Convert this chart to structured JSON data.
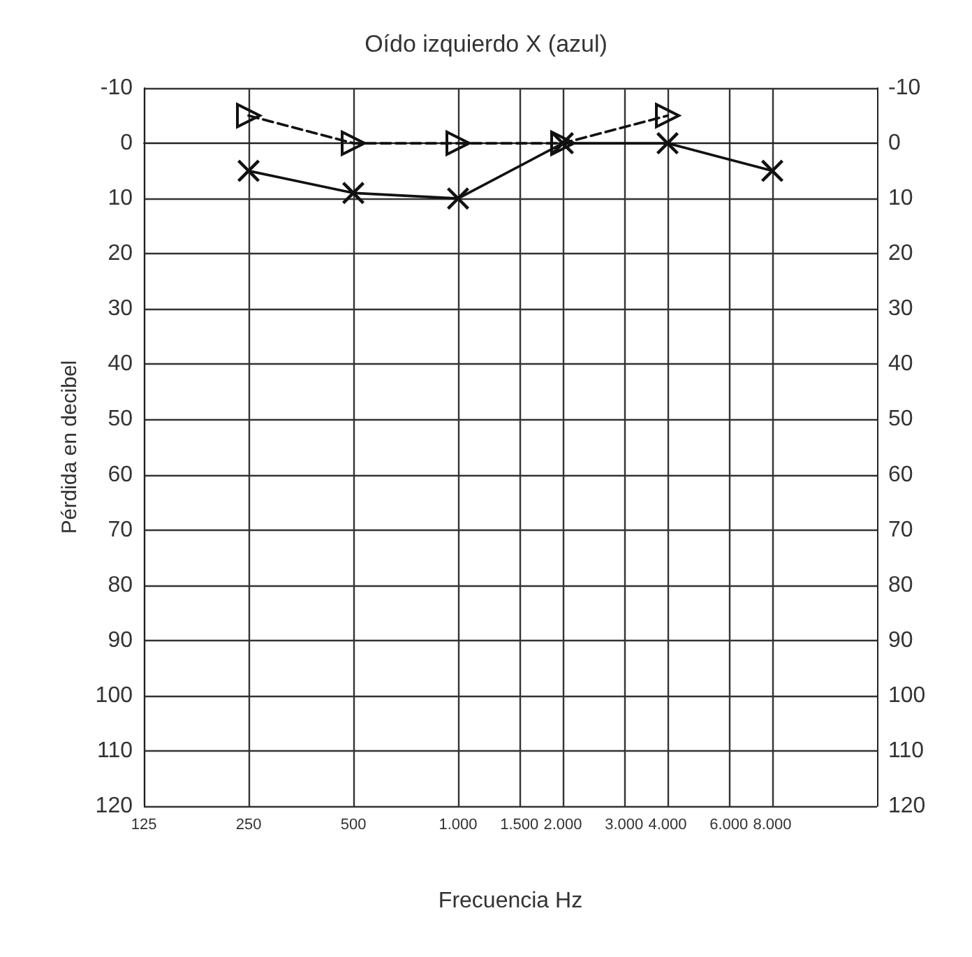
{
  "chart_data": {
    "type": "line",
    "title": "Oído izquierdo X (azul)",
    "xlabel": "Frecuencia Hz",
    "ylabel": "Pérdida en decibel",
    "log": "x",
    "xlim": [
      125,
      16000
    ],
    "xticks": [
      125,
      250,
      500,
      {
        "value": 1000,
        "label": "1.000"
      },
      {
        "value": 1500,
        "label": "1.500"
      },
      {
        "value": 2000,
        "label": "2.000"
      },
      {
        "value": 3000,
        "label": "3.000"
      },
      {
        "value": 4000,
        "label": "4.000"
      },
      {
        "value": 6000,
        "label": "6.000"
      },
      {
        "value": 8000,
        "label": "8.000"
      }
    ],
    "ylim": [
      120,
      -10
    ],
    "yticks": [
      -10,
      0,
      10,
      20,
      30,
      40,
      50,
      60,
      70,
      80,
      90,
      100,
      110,
      120
    ],
    "y2lim": [
      120,
      -10
    ],
    "y2ticks": [
      -10,
      0,
      10,
      20,
      30,
      40,
      50,
      60,
      70,
      80,
      90,
      100,
      110,
      120
    ],
    "grid": true,
    "series": [
      {
        "x": [
          250,
          500,
          1000,
          2000,
          4000,
          8000
        ],
        "values": [
          5,
          9,
          10,
          0,
          0,
          5
        ],
        "color": "#111111",
        "marker": "cross",
        "line_style": "solid"
      },
      {
        "x": [
          250,
          500,
          1000,
          2000,
          4000
        ],
        "values": [
          -5,
          0,
          0,
          0,
          -5
        ],
        "color": "#111111",
        "marker": "triangle",
        "line_style": "dashed"
      }
    ]
  }
}
